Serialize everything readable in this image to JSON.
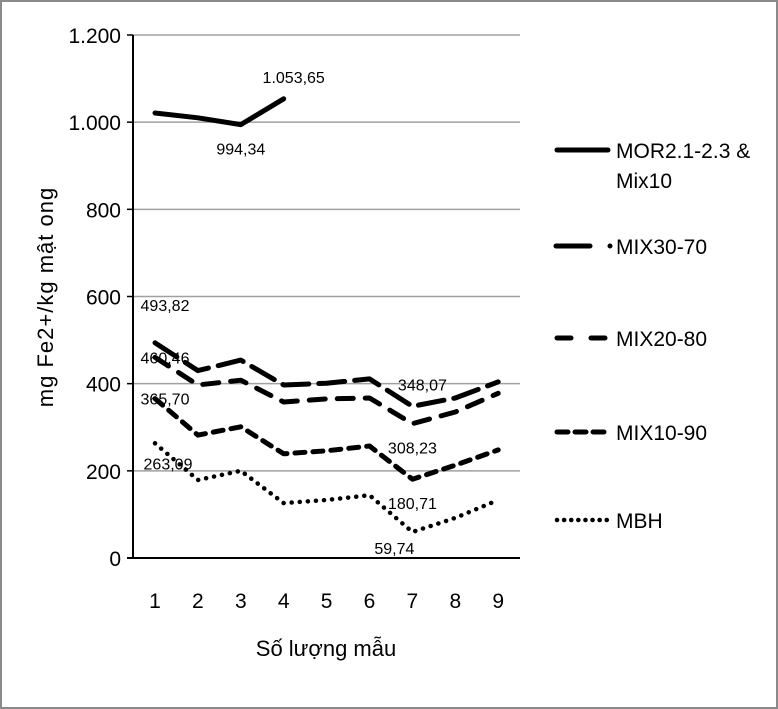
{
  "chart_data": {
    "type": "line",
    "title": "",
    "xlabel": "Số lượng mẫu",
    "ylabel": "mg Fe2+/kg mật ong",
    "x": [
      1,
      2,
      3,
      4,
      5,
      6,
      7,
      8,
      9
    ],
    "x_tick_labels": [
      "1",
      "2",
      "3",
      "4",
      "5",
      "6",
      "7",
      "8",
      "9"
    ],
    "ylim": [
      0,
      1200
    ],
    "y_ticks": [
      0,
      200,
      400,
      600,
      800,
      1000,
      1200
    ],
    "y_tick_labels": [
      "0",
      "200",
      "400",
      "600",
      "800",
      "1.000",
      "1.200"
    ],
    "grid": true,
    "legend_position": "right",
    "series": [
      {
        "name": "MOR2.1-2.3 & Mix10",
        "legend_lines": [
          "MOR2.1-2.3 &",
          "Mix10"
        ],
        "style": "solid",
        "values": [
          1021,
          1010,
          994.34,
          1053.65,
          null,
          null,
          null,
          null,
          null
        ]
      },
      {
        "name": "MIX30-70",
        "legend_lines": [
          "MIX30-70"
        ],
        "style": "long-dash-dot",
        "values": [
          493.82,
          430,
          454,
          397,
          401,
          411,
          348.07,
          367,
          404
        ]
      },
      {
        "name": "MIX20-80",
        "legend_lines": [
          "MIX20-80"
        ],
        "style": "dash",
        "values": [
          460.46,
          397,
          408,
          358,
          365,
          367,
          308.23,
          335,
          378
        ]
      },
      {
        "name": "MIX10-90",
        "legend_lines": [
          "MIX10-90"
        ],
        "style": "short-dash",
        "values": [
          365.7,
          282,
          301,
          239,
          246,
          257,
          180.71,
          213,
          248
        ]
      },
      {
        "name": "MBH",
        "legend_lines": [
          "MBH"
        ],
        "style": "dot",
        "values": [
          263.09,
          179,
          200,
          126,
          133,
          144,
          59.74,
          92,
          133
        ]
      }
    ],
    "annotations": [
      {
        "series": "MOR2.1-2.3 & Mix10",
        "x": 3,
        "text": "994,34",
        "pos": "below"
      },
      {
        "series": "MOR2.1-2.3 & Mix10",
        "x": 4,
        "text": "1.053,65",
        "pos": "above"
      },
      {
        "series": "MIX30-70",
        "x": 1,
        "text": "493,82",
        "pos": "above"
      },
      {
        "series": "MIX20-80",
        "x": 1,
        "text": "460,46",
        "pos": "left"
      },
      {
        "series": "MIX10-90",
        "x": 1,
        "text": "365,70",
        "pos": "left"
      },
      {
        "series": "MBH",
        "x": 1,
        "text": "263,09",
        "pos": "below"
      },
      {
        "series": "MIX30-70",
        "x": 7,
        "text": "348,07",
        "pos": "above"
      },
      {
        "series": "MIX20-80",
        "x": 7,
        "text": "308,23",
        "pos": "below"
      },
      {
        "series": "MIX10-90",
        "x": 7,
        "text": "180,71",
        "pos": "below"
      },
      {
        "series": "MBH",
        "x": 7,
        "text": "59,74",
        "pos": "below-left"
      }
    ],
    "colors": {
      "line": "#000000",
      "grid": "#a0a0a0",
      "axis": "#000000",
      "frame": "#8a8a8a"
    }
  }
}
